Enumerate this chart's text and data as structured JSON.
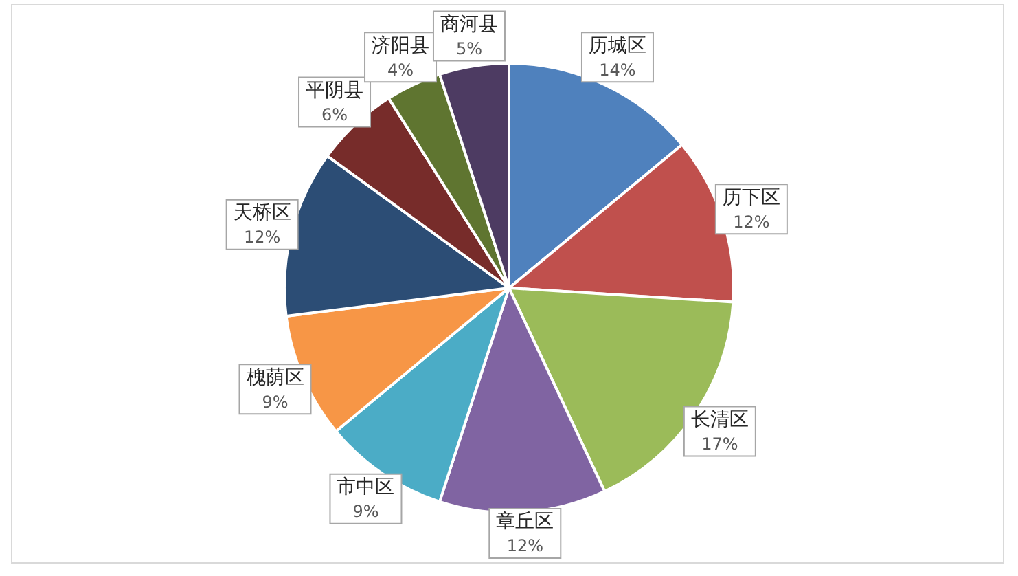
{
  "chart_data": {
    "type": "pie",
    "categories": [
      "历城区",
      "历下区",
      "长清区",
      "章丘区",
      "市中区",
      "槐荫区",
      "天桥区",
      "平阴县",
      "济阳县",
      "商河县"
    ],
    "values": [
      14,
      12,
      17,
      12,
      9,
      9,
      12,
      6,
      4,
      5
    ],
    "value_labels": [
      "14%",
      "12%",
      "17%",
      "12%",
      "9%",
      "9%",
      "12%",
      "6%",
      "4%",
      "5%"
    ],
    "colors": [
      "#4f81bd",
      "#c0504d",
      "#9bbb59",
      "#8064a2",
      "#4bacc6",
      "#f79646",
      "#2c4d75",
      "#772c2a",
      "#5f7530",
      "#4d3b62"
    ],
    "legend": false
  }
}
